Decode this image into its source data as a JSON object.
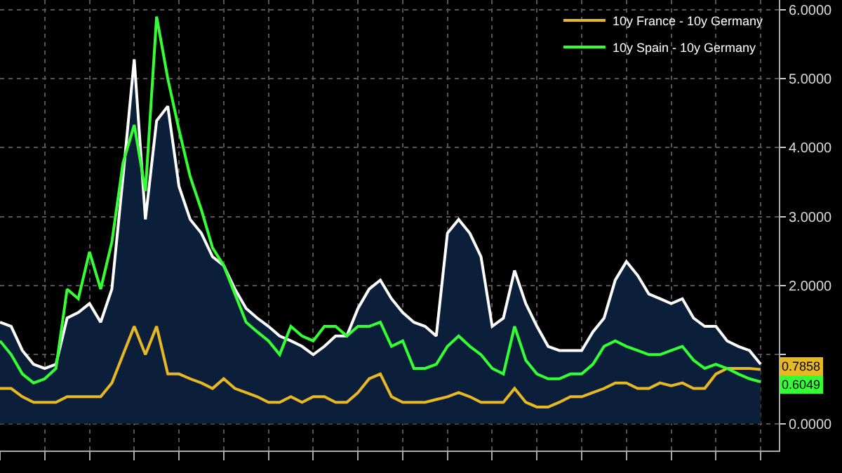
{
  "chart_data": {
    "type": "line",
    "categories": [
      null,
      null,
      null,
      null,
      null,
      null,
      null,
      null,
      null,
      null,
      null,
      null,
      null,
      null,
      null,
      null,
      null,
      null,
      null,
      null,
      null,
      null,
      null,
      null,
      null,
      null,
      null,
      null,
      null,
      null,
      null,
      null,
      null,
      null,
      null,
      null,
      null,
      null,
      null,
      null,
      null,
      null,
      null,
      null,
      null,
      null,
      null,
      null,
      null,
      null,
      null,
      null,
      null,
      null,
      null,
      null,
      null,
      null,
      null,
      null,
      null,
      null,
      null,
      null,
      null,
      null,
      null,
      null,
      null
    ],
    "series": [
      {
        "type": "area",
        "color": "#ffffff",
        "values": [
          1.47,
          1.41,
          1.06,
          0.86,
          0.8,
          0.86,
          1.53,
          1.61,
          1.74,
          1.47,
          1.95,
          3.58,
          5.28,
          2.96,
          4.39,
          4.6,
          3.44,
          2.96,
          2.76,
          2.42,
          2.29,
          1.95,
          1.67,
          1.53,
          1.41,
          1.27,
          1.2,
          1.12,
          1.0,
          1.12,
          1.27,
          1.27,
          1.67,
          1.95,
          2.08,
          1.81,
          1.61,
          1.47,
          1.41,
          1.27,
          2.76,
          2.96,
          2.76,
          2.42,
          1.41,
          1.53,
          2.22,
          1.74,
          1.41,
          1.12,
          1.06,
          1.06,
          1.06,
          1.33,
          1.53,
          2.08,
          2.35,
          2.15,
          1.88,
          1.81,
          1.74,
          1.81,
          1.53,
          1.41,
          1.41,
          1.2,
          1.12,
          1.06,
          0.86
        ]
      },
      {
        "name": "10y France - 10y Germany",
        "color": "#e8b823",
        "values": [
          0.51,
          0.51,
          0.39,
          0.31,
          0.31,
          0.31,
          0.39,
          0.39,
          0.39,
          0.39,
          0.59,
          1.0,
          1.41,
          1.0,
          1.41,
          0.72,
          0.72,
          0.65,
          0.59,
          0.51,
          0.65,
          0.51,
          0.45,
          0.39,
          0.31,
          0.31,
          0.39,
          0.31,
          0.39,
          0.39,
          0.31,
          0.31,
          0.45,
          0.65,
          0.72,
          0.39,
          0.31,
          0.31,
          0.31,
          0.35,
          0.39,
          0.45,
          0.39,
          0.31,
          0.31,
          0.31,
          0.51,
          0.31,
          0.24,
          0.24,
          0.31,
          0.39,
          0.39,
          0.45,
          0.51,
          0.59,
          0.59,
          0.51,
          0.51,
          0.59,
          0.55,
          0.59,
          0.51,
          0.51,
          0.72,
          0.8,
          0.8,
          0.8,
          0.7858
        ],
        "value_labels": [
          null,
          null,
          null,
          null,
          null,
          null,
          null,
          null,
          null,
          null,
          null,
          null,
          null,
          null,
          null,
          null,
          null,
          null,
          null,
          null,
          null,
          null,
          null,
          null,
          null,
          null,
          null,
          null,
          null,
          null,
          null,
          null,
          null,
          null,
          null,
          null,
          null,
          null,
          null,
          null,
          null,
          null,
          null,
          null,
          null,
          null,
          null,
          null,
          null,
          null,
          null,
          null,
          null,
          null,
          null,
          null,
          null,
          null,
          null,
          null,
          null,
          null,
          null,
          null,
          null,
          null,
          null,
          null,
          "0.7858"
        ]
      },
      {
        "name": "10y Spain - 10y Germany",
        "color": "#33ff33",
        "values": [
          1.2,
          1.0,
          0.72,
          0.59,
          0.65,
          0.8,
          1.95,
          1.81,
          2.49,
          1.95,
          2.63,
          3.78,
          4.33,
          3.37,
          5.9,
          5.0,
          4.26,
          3.58,
          3.1,
          2.55,
          2.29,
          1.88,
          1.47,
          1.33,
          1.2,
          1.0,
          1.41,
          1.27,
          1.2,
          1.41,
          1.41,
          1.27,
          1.41,
          1.41,
          1.47,
          1.12,
          1.2,
          0.8,
          0.8,
          0.86,
          1.12,
          1.27,
          1.12,
          1.0,
          0.8,
          0.72,
          1.41,
          0.92,
          0.72,
          0.65,
          0.65,
          0.72,
          0.72,
          0.86,
          1.12,
          1.2,
          1.12,
          1.06,
          1.0,
          1.0,
          1.06,
          1.12,
          0.92,
          0.8,
          0.86,
          0.8,
          0.72,
          0.65,
          0.6049
        ],
        "value_labels": [
          null,
          null,
          null,
          null,
          null,
          null,
          null,
          null,
          null,
          null,
          null,
          null,
          null,
          null,
          null,
          null,
          null,
          null,
          null,
          null,
          null,
          null,
          null,
          null,
          null,
          null,
          null,
          null,
          null,
          null,
          null,
          null,
          null,
          null,
          null,
          null,
          null,
          null,
          null,
          null,
          null,
          null,
          null,
          null,
          null,
          null,
          null,
          null,
          null,
          null,
          null,
          null,
          null,
          null,
          null,
          null,
          null,
          null,
          null,
          null,
          null,
          null,
          null,
          null,
          null,
          null,
          null,
          null,
          "0.6049"
        ]
      }
    ],
    "ylim": [
      -0.39,
      6.14
    ],
    "yticks": [
      {
        "value": 0,
        "label": "0.0000"
      },
      {
        "value": 1,
        "label": null
      },
      {
        "value": 2,
        "label": "2.0000"
      },
      {
        "value": 3,
        "label": "3.0000"
      },
      {
        "value": 4,
        "label": "4.0000"
      },
      {
        "value": 5,
        "label": "5.0000"
      },
      {
        "value": 6,
        "label": "6.0000"
      }
    ],
    "grid": true,
    "legend": "top right",
    "tick_labels": "y",
    "marker": "none",
    "line_style": "solid"
  }
}
